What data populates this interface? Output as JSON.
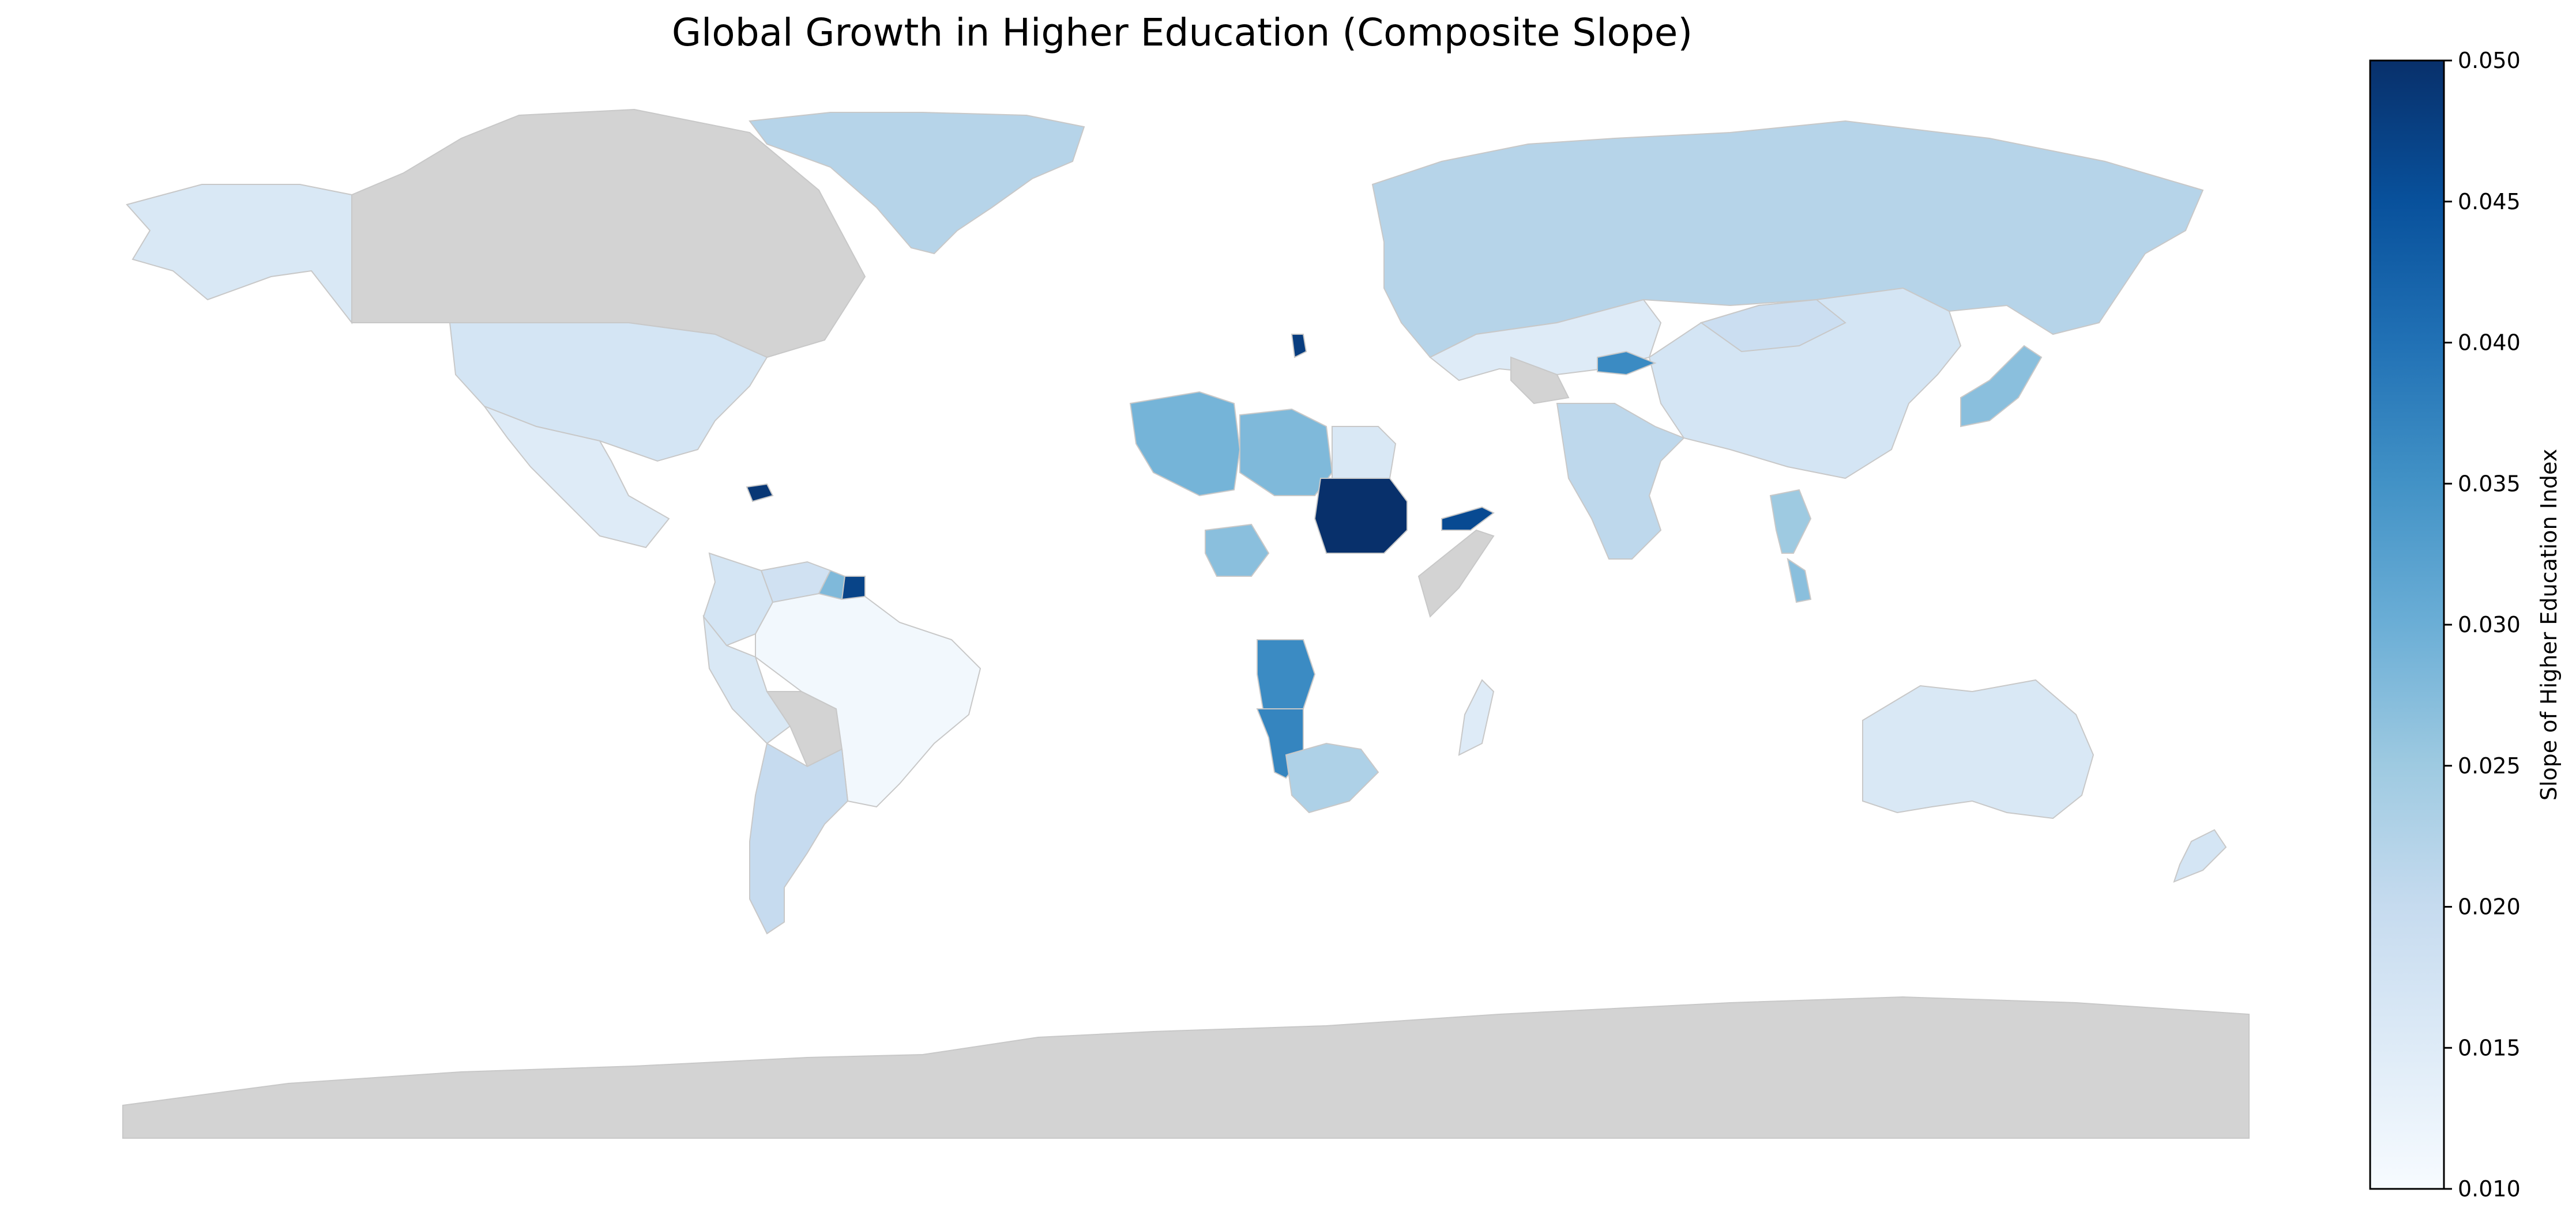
{
  "title": "Global Growth in Higher Education (Composite Slope)",
  "colorbar": {
    "label": "Slope of Higher Education Index",
    "ticks": [
      "0.050",
      "0.045",
      "0.040",
      "0.035",
      "0.030",
      "0.025",
      "0.020",
      "0.015",
      "0.010"
    ],
    "min": 0.01,
    "max": 0.05,
    "colormap": "Blues"
  },
  "colors": {
    "no_data": "#d3d3d3",
    "border": "#c8c8c8",
    "low": "#f7fbff",
    "high": "#08306b"
  },
  "chart_data": {
    "type": "heatmap",
    "title": "Global Growth in Higher Education (Composite Slope)",
    "value_label": "Slope of Higher Education Index",
    "range": [
      0.01,
      0.05
    ],
    "regions": [
      {
        "region": "Canada",
        "value": null
      },
      {
        "region": "Alaska (USA)",
        "value": 0.016
      },
      {
        "region": "United States",
        "value": 0.017
      },
      {
        "region": "Mexico",
        "value": 0.015
      },
      {
        "region": "Greenland",
        "value": 0.022
      },
      {
        "region": "Haiti",
        "value": 0.049
      },
      {
        "region": "Venezuela",
        "value": 0.018
      },
      {
        "region": "Guyana",
        "value": 0.028
      },
      {
        "region": "Suriname",
        "value": 0.047
      },
      {
        "region": "Colombia",
        "value": 0.017
      },
      {
        "region": "Peru",
        "value": 0.016
      },
      {
        "region": "Bolivia",
        "value": null
      },
      {
        "region": "Brazil",
        "value": 0.011
      },
      {
        "region": "Argentina",
        "value": 0.02
      },
      {
        "region": "Russia",
        "value": 0.022
      },
      {
        "region": "China",
        "value": 0.017
      },
      {
        "region": "India",
        "value": 0.021
      },
      {
        "region": "Kazakhstan",
        "value": 0.015
      },
      {
        "region": "Mongolia",
        "value": 0.019
      },
      {
        "region": "Japan",
        "value": 0.027
      },
      {
        "region": "Kyrgyzstan",
        "value": 0.036
      },
      {
        "region": "Turkmenistan",
        "value": null
      },
      {
        "region": "Algeria",
        "value": 0.029
      },
      {
        "region": "Libya",
        "value": 0.028
      },
      {
        "region": "Egypt",
        "value": 0.016
      },
      {
        "region": "Sudan",
        "value": 0.05
      },
      {
        "region": "Yemen",
        "value": 0.046
      },
      {
        "region": "Nigeria",
        "value": 0.027
      },
      {
        "region": "Angola",
        "value": 0.036
      },
      {
        "region": "Namibia",
        "value": 0.037
      },
      {
        "region": "South Africa",
        "value": 0.023
      },
      {
        "region": "Madagascar",
        "value": 0.015
      },
      {
        "region": "Somalia",
        "value": null
      },
      {
        "region": "Serbia",
        "value": 0.048
      },
      {
        "region": "Thailand",
        "value": 0.025
      },
      {
        "region": "Malaysia",
        "value": 0.027
      },
      {
        "region": "Australia",
        "value": 0.016
      },
      {
        "region": "New Zealand",
        "value": 0.017
      },
      {
        "region": "Antarctica",
        "value": null
      }
    ]
  }
}
